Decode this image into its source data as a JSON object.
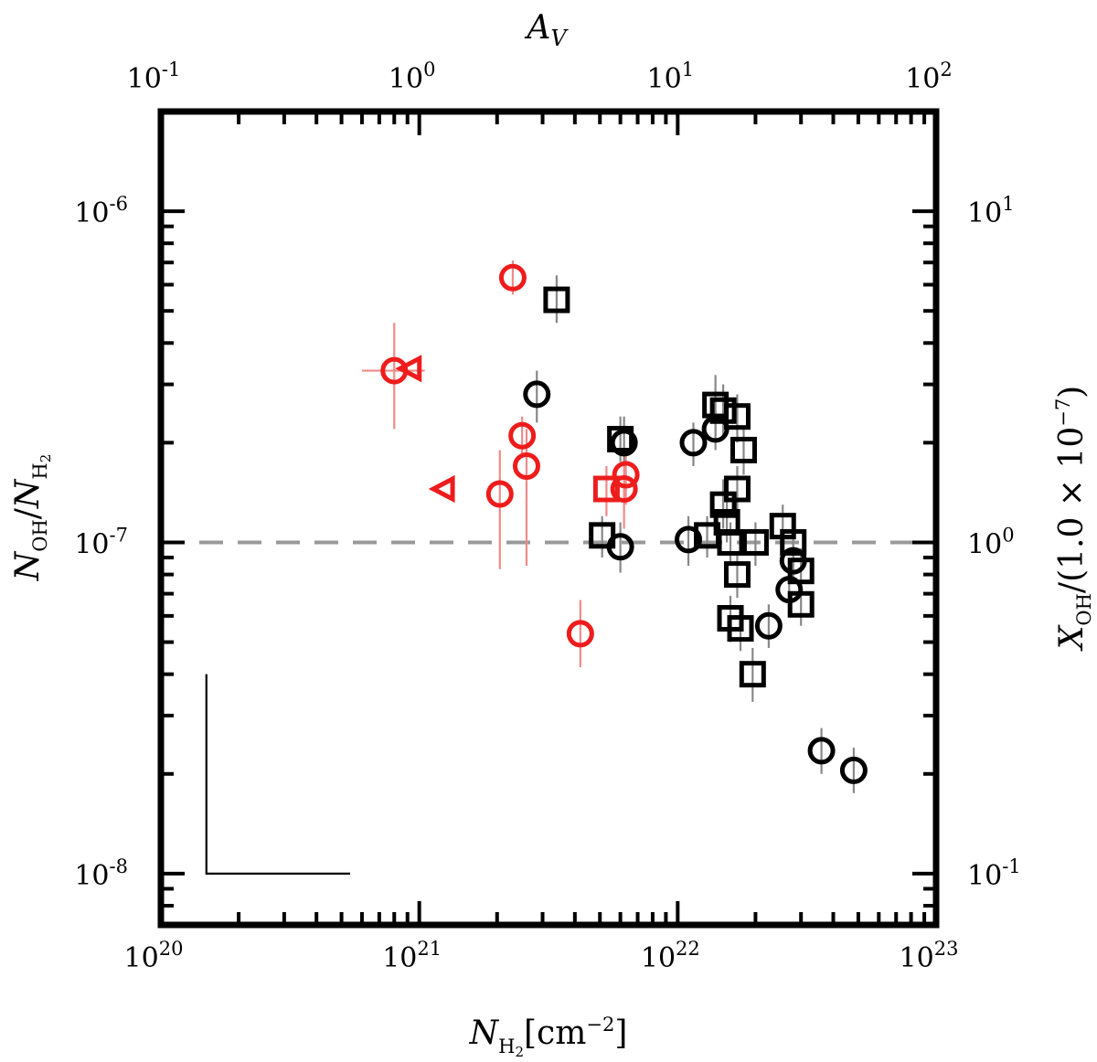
{
  "chart_data": {
    "type": "scatter",
    "title": "",
    "xlabel": "N_H2 [cm^-2]",
    "ylabel": "N_OH / N_H2",
    "top_xlabel": "A_V",
    "right_ylabel": "X_OH / (1.0 × 10^-7)",
    "xscale": "log",
    "yscale": "log",
    "xlim": [
      1e+20,
      1e+23
    ],
    "ylim": [
      7e-09,
      2e-06
    ],
    "top_xlim": [
      0.1,
      100
    ],
    "right_ylim": [
      0.07,
      20
    ],
    "x_tick_labels": [
      {
        "base": "10",
        "exp": "20",
        "value": 1e+20
      },
      {
        "base": "10",
        "exp": "21",
        "value": 1e+21
      },
      {
        "base": "10",
        "exp": "22",
        "value": 1e+22
      },
      {
        "base": "10",
        "exp": "23",
        "value": 1e+23
      }
    ],
    "y_tick_labels": [
      {
        "base": "10",
        "exp": "-8",
        "value": 1e-08
      },
      {
        "base": "10",
        "exp": "-7",
        "value": 1e-07
      },
      {
        "base": "10",
        "exp": "-6",
        "value": 1e-06
      }
    ],
    "top_tick_labels": [
      {
        "base": "10",
        "exp": "-1",
        "value": 0.1
      },
      {
        "base": "10",
        "exp": "0",
        "value": 1
      },
      {
        "base": "10",
        "exp": "1",
        "value": 10
      },
      {
        "base": "10",
        "exp": "2",
        "value": 100
      }
    ],
    "right_tick_labels": [
      {
        "base": "10",
        "exp": "-1",
        "value": 0.1
      },
      {
        "base": "10",
        "exp": "0",
        "value": 1
      },
      {
        "base": "10",
        "exp": "1",
        "value": 10
      }
    ],
    "reference_line": {
      "y": 1e-07,
      "style": "dashed",
      "color": "#999999"
    },
    "colors": {
      "red": "#ee1c1c",
      "black": "#000000",
      "err_red": "#f08a8a",
      "err_black": "#888888"
    },
    "series": [
      {
        "marker": "circle",
        "color": "red",
        "points": [
          {
            "x": 2.3e+21,
            "y": 6.3e-07,
            "ylo": 5.6e-07,
            "yhi": 7.1e-07
          },
          {
            "x": 8e+20,
            "y": 3.3e-07,
            "ylo": 2.2e-07,
            "yhi": 4.6e-07,
            "xlo": 6e+20,
            "xhi": 1.05e+21
          },
          {
            "x": 2.5e+21,
            "y": 2.1e-07,
            "ylo": 1.8e-07,
            "yhi": 2.4e-07
          },
          {
            "x": 2.6e+21,
            "y": 1.7e-07,
            "ylo": 8.5e-08,
            "yhi": 2.2e-07
          },
          {
            "x": 2.05e+21,
            "y": 1.4e-07,
            "ylo": 8.3e-08,
            "yhi": 1.9e-07
          },
          {
            "x": 6.3e+21,
            "y": 1.6e-07,
            "ylo": 1.3e-07,
            "yhi": 1.9e-07
          },
          {
            "x": 6.2e+21,
            "y": 1.45e-07,
            "ylo": 1.1e-07,
            "yhi": 1.8e-07
          },
          {
            "x": 4.2e+21,
            "y": 5.3e-08,
            "ylo": 4.2e-08,
            "yhi": 6.7e-08
          }
        ]
      },
      {
        "marker": "triangle-left",
        "color": "red",
        "points": [
          {
            "x": 9.3e+20,
            "y": 3.35e-07
          },
          {
            "x": 1.25e+21,
            "y": 1.45e-07
          }
        ]
      },
      {
        "marker": "square",
        "color": "red",
        "points": [
          {
            "x": 5.3e+21,
            "y": 1.45e-07,
            "ylo": 1.2e-07,
            "yhi": 1.7e-07
          }
        ]
      },
      {
        "marker": "circle",
        "color": "black",
        "points": [
          {
            "x": 2.85e+21,
            "y": 2.8e-07,
            "ylo": 2.3e-07,
            "yhi": 3.3e-07
          },
          {
            "x": 6.2e+21,
            "y": 2e-07,
            "ylo": 1.7e-07,
            "yhi": 2.4e-07
          },
          {
            "x": 6e+21,
            "y": 9.7e-08,
            "ylo": 8.1e-08,
            "yhi": 1.15e-07
          },
          {
            "x": 1.15e+22,
            "y": 2e-07,
            "ylo": 1.7e-07,
            "yhi": 2.3e-07
          },
          {
            "x": 1.1e+22,
            "y": 1.02e-07,
            "ylo": 8.5e-08,
            "yhi": 1.2e-07
          },
          {
            "x": 1.4e+22,
            "y": 2.2e-07,
            "ylo": 1.9e-07,
            "yhi": 2.5e-07
          },
          {
            "x": 2.25e+22,
            "y": 5.6e-08,
            "ylo": 4.8e-08,
            "yhi": 6.5e-08
          },
          {
            "x": 2.7e+22,
            "y": 7.2e-08,
            "ylo": 6.2e-08,
            "yhi": 8.5e-08
          },
          {
            "x": 2.8e+22,
            "y": 8.8e-08,
            "ylo": 7.5e-08,
            "yhi": 1e-07
          },
          {
            "x": 3.6e+22,
            "y": 2.35e-08,
            "ylo": 2e-08,
            "yhi": 2.75e-08
          },
          {
            "x": 4.8e+22,
            "y": 2.05e-08,
            "ylo": 1.75e-08,
            "yhi": 2.4e-08
          }
        ]
      },
      {
        "marker": "square",
        "color": "black",
        "points": [
          {
            "x": 3.4e+21,
            "y": 5.4e-07,
            "ylo": 4.6e-07,
            "yhi": 6.4e-07
          },
          {
            "x": 6e+21,
            "y": 2.05e-07,
            "ylo": 1.75e-07,
            "yhi": 2.4e-07
          },
          {
            "x": 5.1e+21,
            "y": 1.05e-07,
            "ylo": 9e-08,
            "yhi": 1.2e-07
          },
          {
            "x": 1.3e+22,
            "y": 1.05e-07,
            "ylo": 9e-08,
            "yhi": 1.2e-07
          },
          {
            "x": 1.4e+22,
            "y": 2.6e-07,
            "ylo": 2.1e-07,
            "yhi": 3.2e-07
          },
          {
            "x": 1.5e+22,
            "y": 2.5e-07,
            "ylo": 2.1e-07,
            "yhi": 3e-07
          },
          {
            "x": 1.7e+22,
            "y": 2.4e-07,
            "ylo": 2e-07,
            "yhi": 2.8e-07
          },
          {
            "x": 1.8e+22,
            "y": 1.9e-07,
            "ylo": 1.6e-07,
            "yhi": 2.2e-07
          },
          {
            "x": 1.7e+22,
            "y": 1.45e-07,
            "ylo": 1.25e-07,
            "yhi": 1.7e-07
          },
          {
            "x": 1.5e+22,
            "y": 1.3e-07,
            "ylo": 1.1e-07,
            "yhi": 1.55e-07
          },
          {
            "x": 1.55e+22,
            "y": 1.15e-07,
            "ylo": 1e-07,
            "yhi": 1.35e-07
          },
          {
            "x": 1.6e+22,
            "y": 1e-07,
            "ylo": 8.5e-08,
            "yhi": 1.15e-07
          },
          {
            "x": 2e+22,
            "y": 1e-07,
            "ylo": 8.5e-08,
            "yhi": 1.15e-07
          },
          {
            "x": 1.7e+22,
            "y": 8e-08,
            "ylo": 6.8e-08,
            "yhi": 9.3e-08
          },
          {
            "x": 1.6e+22,
            "y": 5.9e-08,
            "ylo": 5e-08,
            "yhi": 6.9e-08
          },
          {
            "x": 1.75e+22,
            "y": 5.5e-08,
            "ylo": 4.7e-08,
            "yhi": 6.4e-08
          },
          {
            "x": 1.95e+22,
            "y": 4e-08,
            "ylo": 3.3e-08,
            "yhi": 4.8e-08
          },
          {
            "x": 2.55e+22,
            "y": 1.12e-07,
            "ylo": 9.5e-08,
            "yhi": 1.3e-07
          },
          {
            "x": 2.8e+22,
            "y": 1e-07,
            "ylo": 8.5e-08,
            "yhi": 1.15e-07
          },
          {
            "x": 3e+22,
            "y": 8.2e-08,
            "ylo": 7e-08,
            "yhi": 9.6e-08
          },
          {
            "x": 3e+22,
            "y": 6.5e-08,
            "ylo": 5.6e-08,
            "yhi": 7.6e-08
          }
        ]
      }
    ],
    "scale_bar": {
      "x0": 1.5e+20,
      "x1": 5.4e+20,
      "y0": 1e-08,
      "y1": 4e-08
    }
  }
}
